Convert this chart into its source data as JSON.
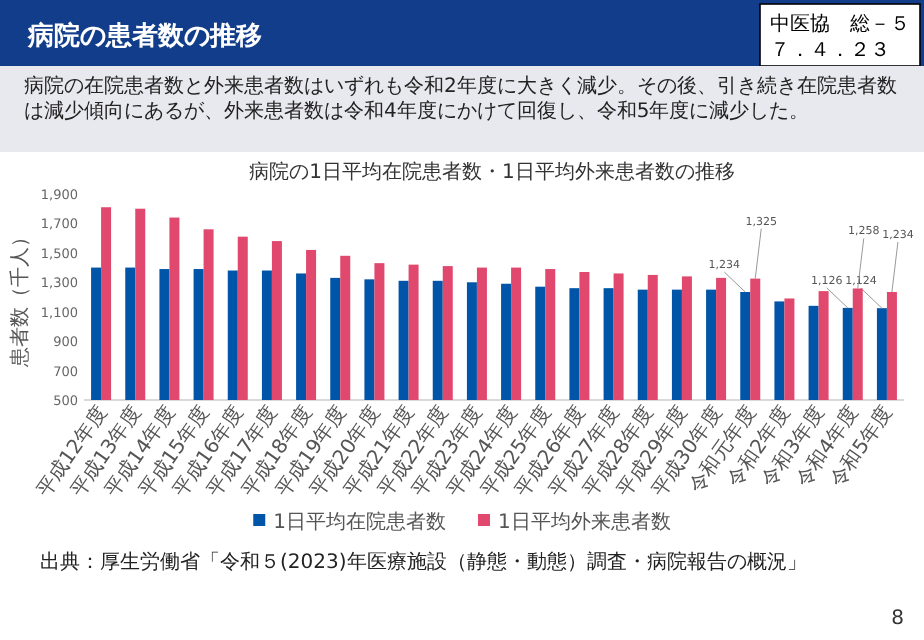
{
  "chart_data": {
    "type": "bar",
    "title": "病院の1日平均在院患者数・1日平均外来患者数の推移",
    "subtitle": "病院の在院患者数と外来患者数はいずれも令和2年度に大きく減少。その後、引き続き在院患者数は減少傾向にあるが、外来患者数は令和4年度にかけて回復し、令和5年度に減少した。",
    "ylabel": "患者数（千人）",
    "annotations": [
      "病院の患者数の推移",
      "中医協　総－５",
      "７．４．２３",
      "出典：厚生労働省「令和５(2023)年医療施設（静態・動態）調査・病院報告の概況」",
      "8"
    ],
    "categories": [
      "平成12年度",
      "平成13年度",
      "平成14年度",
      "平成15年度",
      "平成16年度",
      "平成17年度",
      "平成18年度",
      "平成19年度",
      "平成20年度",
      "平成21年度",
      "平成22年度",
      "平成23年度",
      "平成24年度",
      "平成25年度",
      "平成26年度",
      "平成27年度",
      "平成28年度",
      "平成29年度",
      "平成30年度",
      "令和元年度",
      "令和2年度",
      "令和3年度",
      "令和4年度",
      "令和5年度"
    ],
    "series": [
      {
        "name": "1日平均在院患者数",
        "color": "#0055a8",
        "values": [
          1400,
          1400,
          1390,
          1390,
          1380,
          1380,
          1360,
          1330,
          1320,
          1310,
          1310,
          1300,
          1290,
          1270,
          1260,
          1260,
          1250,
          1250,
          1250,
          1234,
          1170,
          1140,
          1126,
          1124
        ],
        "value_labels": [
          null,
          null,
          null,
          null,
          null,
          null,
          null,
          null,
          null,
          null,
          null,
          null,
          null,
          null,
          null,
          null,
          null,
          null,
          null,
          "1,234",
          null,
          null,
          "1,126",
          "1,124"
        ]
      },
      {
        "name": "1日平均外来患者数",
        "color": "#e0486e",
        "values": [
          1810,
          1800,
          1740,
          1660,
          1610,
          1580,
          1520,
          1480,
          1430,
          1420,
          1410,
          1400,
          1400,
          1390,
          1370,
          1360,
          1350,
          1340,
          1330,
          1325,
          1190,
          1240,
          1258,
          1234
        ],
        "value_labels": [
          null,
          null,
          null,
          null,
          null,
          null,
          null,
          null,
          null,
          null,
          null,
          null,
          null,
          null,
          null,
          null,
          null,
          null,
          null,
          "1,325",
          null,
          null,
          "1,258",
          "1,234"
        ]
      }
    ],
    "ylim": [
      500,
      1900
    ],
    "yticks": [
      {
        "value": 500,
        "label": "500"
      },
      {
        "value": 700,
        "label": "700"
      },
      {
        "value": 900,
        "label": "900"
      },
      {
        "value": 1100,
        "label": "1,100"
      },
      {
        "value": 1300,
        "label": "1,300"
      },
      {
        "value": 1500,
        "label": "1,500"
      },
      {
        "value": 1700,
        "label": "1,700"
      },
      {
        "value": 1900,
        "label": "1,900"
      }
    ],
    "legend": "bottom"
  }
}
